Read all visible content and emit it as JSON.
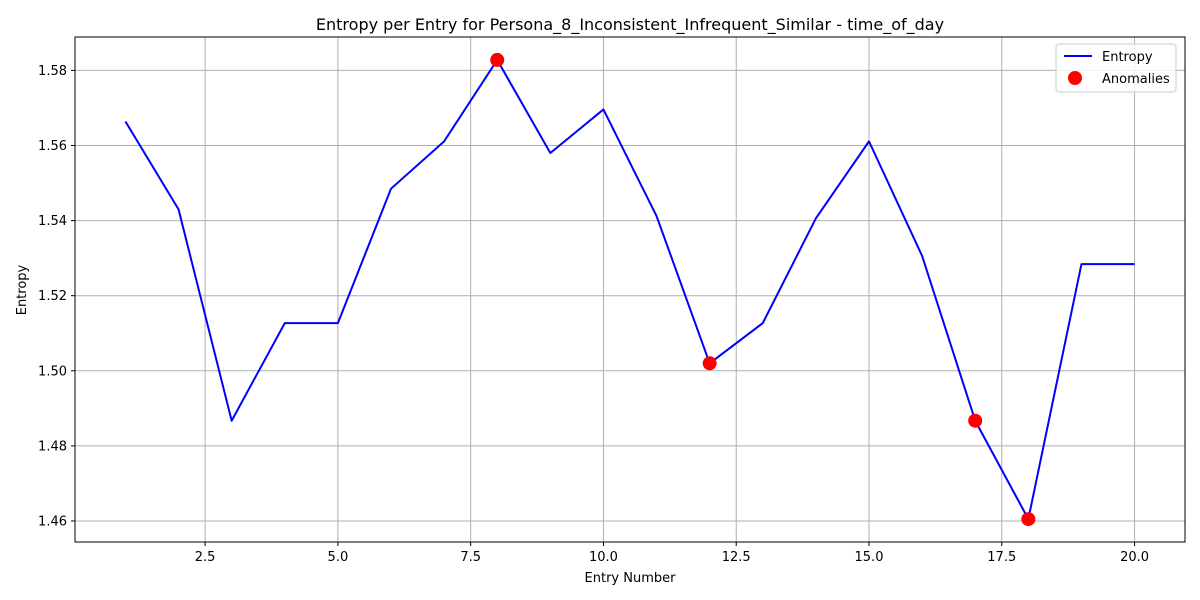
{
  "chart_data": {
    "type": "line",
    "title": "Entropy per Entry for Persona_8_Inconsistent_Infrequent_Similar - time_of_day",
    "xlabel": "Entry Number",
    "ylabel": "Entropy",
    "xlim": [
      0.05,
      20.95
    ],
    "ylim": [
      1.4544,
      1.5889
    ],
    "xticks": [
      2.5,
      5.0,
      7.5,
      10.0,
      12.5,
      15.0,
      17.5,
      20.0
    ],
    "xtick_labels": [
      "2.5",
      "5.0",
      "7.5",
      "10.0",
      "12.5",
      "15.0",
      "17.5",
      "20.0"
    ],
    "yticks": [
      1.46,
      1.48,
      1.5,
      1.52,
      1.54,
      1.56,
      1.58
    ],
    "ytick_labels": [
      "1.46",
      "1.48",
      "1.50",
      "1.52",
      "1.54",
      "1.56",
      "1.58"
    ],
    "grid": true,
    "legend_position": "top-right",
    "series": [
      {
        "name": "Entropy",
        "kind": "line",
        "color": "#0000ff",
        "x": [
          1,
          2,
          3,
          4,
          5,
          6,
          7,
          8,
          9,
          10,
          11,
          12,
          13,
          14,
          15,
          16,
          17,
          18,
          19,
          20
        ],
        "y": [
          1.5664,
          1.543,
          1.4867,
          1.5127,
          1.5127,
          1.5485,
          1.5611,
          1.5828,
          1.558,
          1.5696,
          1.5412,
          1.502,
          1.5127,
          1.5406,
          1.5611,
          1.5306,
          1.4867,
          1.4605,
          1.5284,
          1.5284
        ]
      },
      {
        "name": "Anomalies",
        "kind": "scatter",
        "color": "#ff0000",
        "x": [
          8,
          12,
          17,
          18
        ],
        "y": [
          1.5828,
          1.502,
          1.4867,
          1.4605
        ]
      }
    ]
  }
}
